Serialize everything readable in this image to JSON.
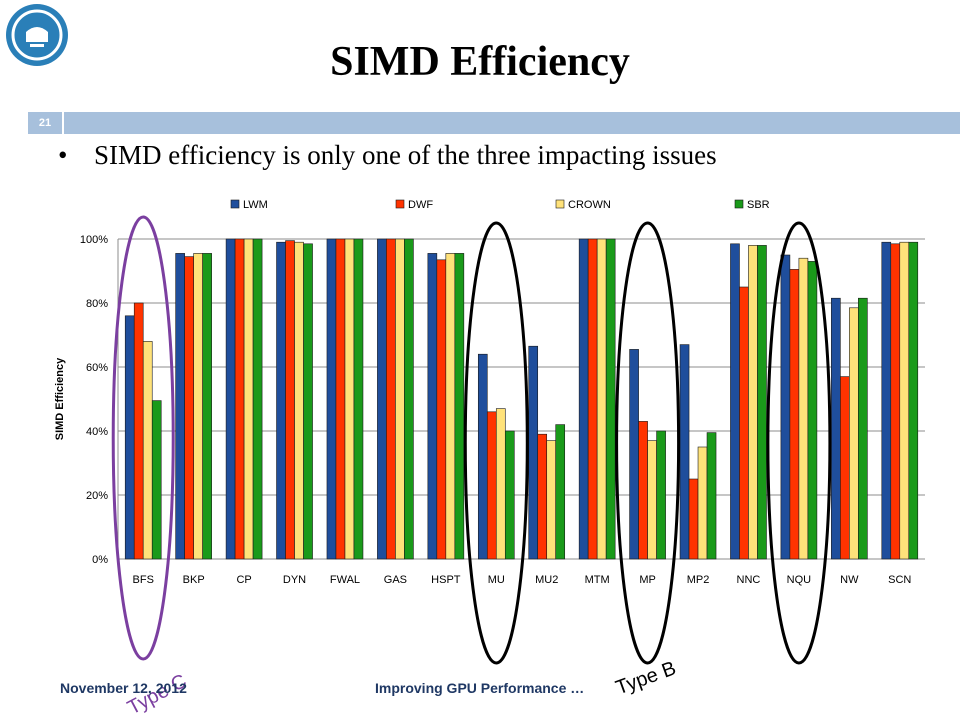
{
  "slide": {
    "number": "21",
    "title": "SIMD Efficiency",
    "bullet": "SIMD efficiency is only one of the three impacting issues",
    "footer_left": "November 12, 2012",
    "footer_center": "Improving GPU Performance …",
    "colors": {
      "accent": "#a7c0dc",
      "logo": "#2a7fb8",
      "ellipse_type_c": "#7b3fa0",
      "ellipse_type_b": "#000000"
    }
  },
  "annotations": {
    "type_c_label": "Type C",
    "type_b_label": "Type B",
    "type_c_categories": [
      "BFS"
    ],
    "type_b_categories": [
      "MU",
      "MP",
      "NQU"
    ]
  },
  "chart_data": {
    "type": "bar",
    "ylabel": "SIMD Efficiency",
    "xlabel": "",
    "ylim": [
      0,
      100
    ],
    "yticks": [
      "0%",
      "20%",
      "40%",
      "60%",
      "80%",
      "100%"
    ],
    "grid": true,
    "legend_position": "top",
    "categories": [
      "BFS",
      "BKP",
      "CP",
      "DYN",
      "FWAL",
      "GAS",
      "HSPT",
      "MU",
      "MU2",
      "MTM",
      "MP",
      "MP2",
      "NNC",
      "NQU",
      "NW",
      "SCN"
    ],
    "series": [
      {
        "name": "LWM",
        "color": "#1f4e9c",
        "values": [
          76,
          95.5,
          100,
          99,
          100,
          100,
          95.5,
          64,
          66.5,
          100,
          65.5,
          67,
          98.5,
          95,
          81.5,
          99
        ]
      },
      {
        "name": "DWF",
        "color": "#ff3300",
        "values": [
          80,
          94.5,
          100,
          99.5,
          100,
          100,
          93.5,
          46,
          39,
          100,
          43,
          25,
          85,
          90.5,
          57,
          98.5
        ]
      },
      {
        "name": "CROWN",
        "color": "#ffe27a",
        "values": [
          68,
          95.5,
          100,
          99,
          100,
          100,
          95.5,
          47,
          37,
          100,
          37,
          35,
          98,
          94,
          78.5,
          99
        ]
      },
      {
        "name": "SBR",
        "color": "#1a9a1a",
        "values": [
          49.5,
          95.5,
          100,
          98.5,
          100,
          100,
          95.5,
          40,
          42,
          100,
          40,
          39.5,
          98,
          93,
          81.5,
          99
        ]
      }
    ]
  }
}
